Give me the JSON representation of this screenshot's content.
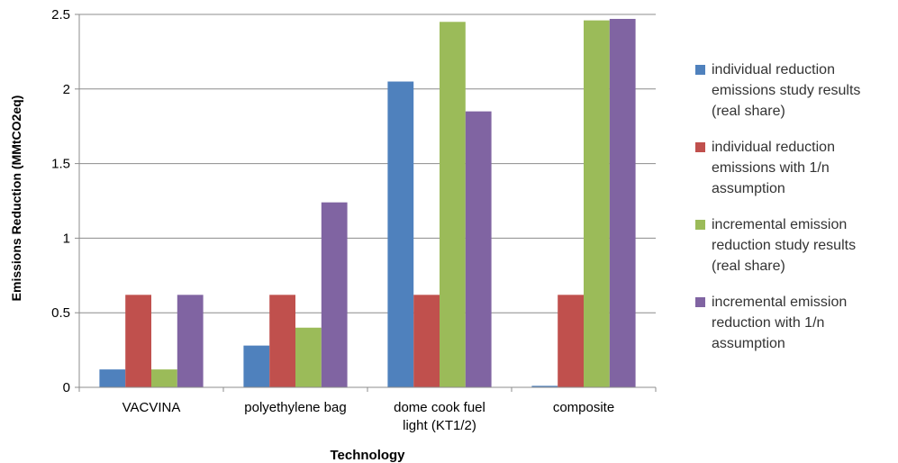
{
  "chart_data": {
    "type": "bar",
    "title": "",
    "xlabel": "Technology",
    "ylabel": "Emissions Reduction (MMtCO2eq)",
    "ylim": [
      0,
      2.5
    ],
    "yticks": [
      "0",
      "0.5",
      "1",
      "1.5",
      "2",
      "2.5"
    ],
    "grid": true,
    "legend_position": "right",
    "categories": [
      [
        "VACVINA"
      ],
      [
        "polyethylene bag"
      ],
      [
        "dome cook fuel",
        "light (KT1/2)"
      ],
      [
        "composite"
      ]
    ],
    "series": [
      {
        "name": "individual reduction emissions study results (real share)",
        "name_lines": [
          "individual reduction",
          "emissions study results",
          "(real share)"
        ],
        "color": "#4f81bd",
        "values": [
          0.12,
          0.28,
          2.05,
          0.01
        ]
      },
      {
        "name": "individual reduction emissions with 1/n assumption",
        "name_lines": [
          "individual reduction",
          "emissions with 1/n",
          "assumption"
        ],
        "color": "#c0504d",
        "values": [
          0.62,
          0.62,
          0.62,
          0.62
        ]
      },
      {
        "name": "incremental emission reduction study results (real share)",
        "name_lines": [
          "incremental emission",
          "reduction study results",
          "(real share)"
        ],
        "color": "#9bbb59",
        "values": [
          0.12,
          0.4,
          2.45,
          2.46
        ]
      },
      {
        "name": "incremental emission reduction with 1/n assumption",
        "name_lines": [
          "incremental emission",
          "reduction with 1/n",
          "assumption"
        ],
        "color": "#8064a2",
        "values": [
          0.62,
          1.24,
          1.85,
          2.47
        ]
      }
    ]
  }
}
